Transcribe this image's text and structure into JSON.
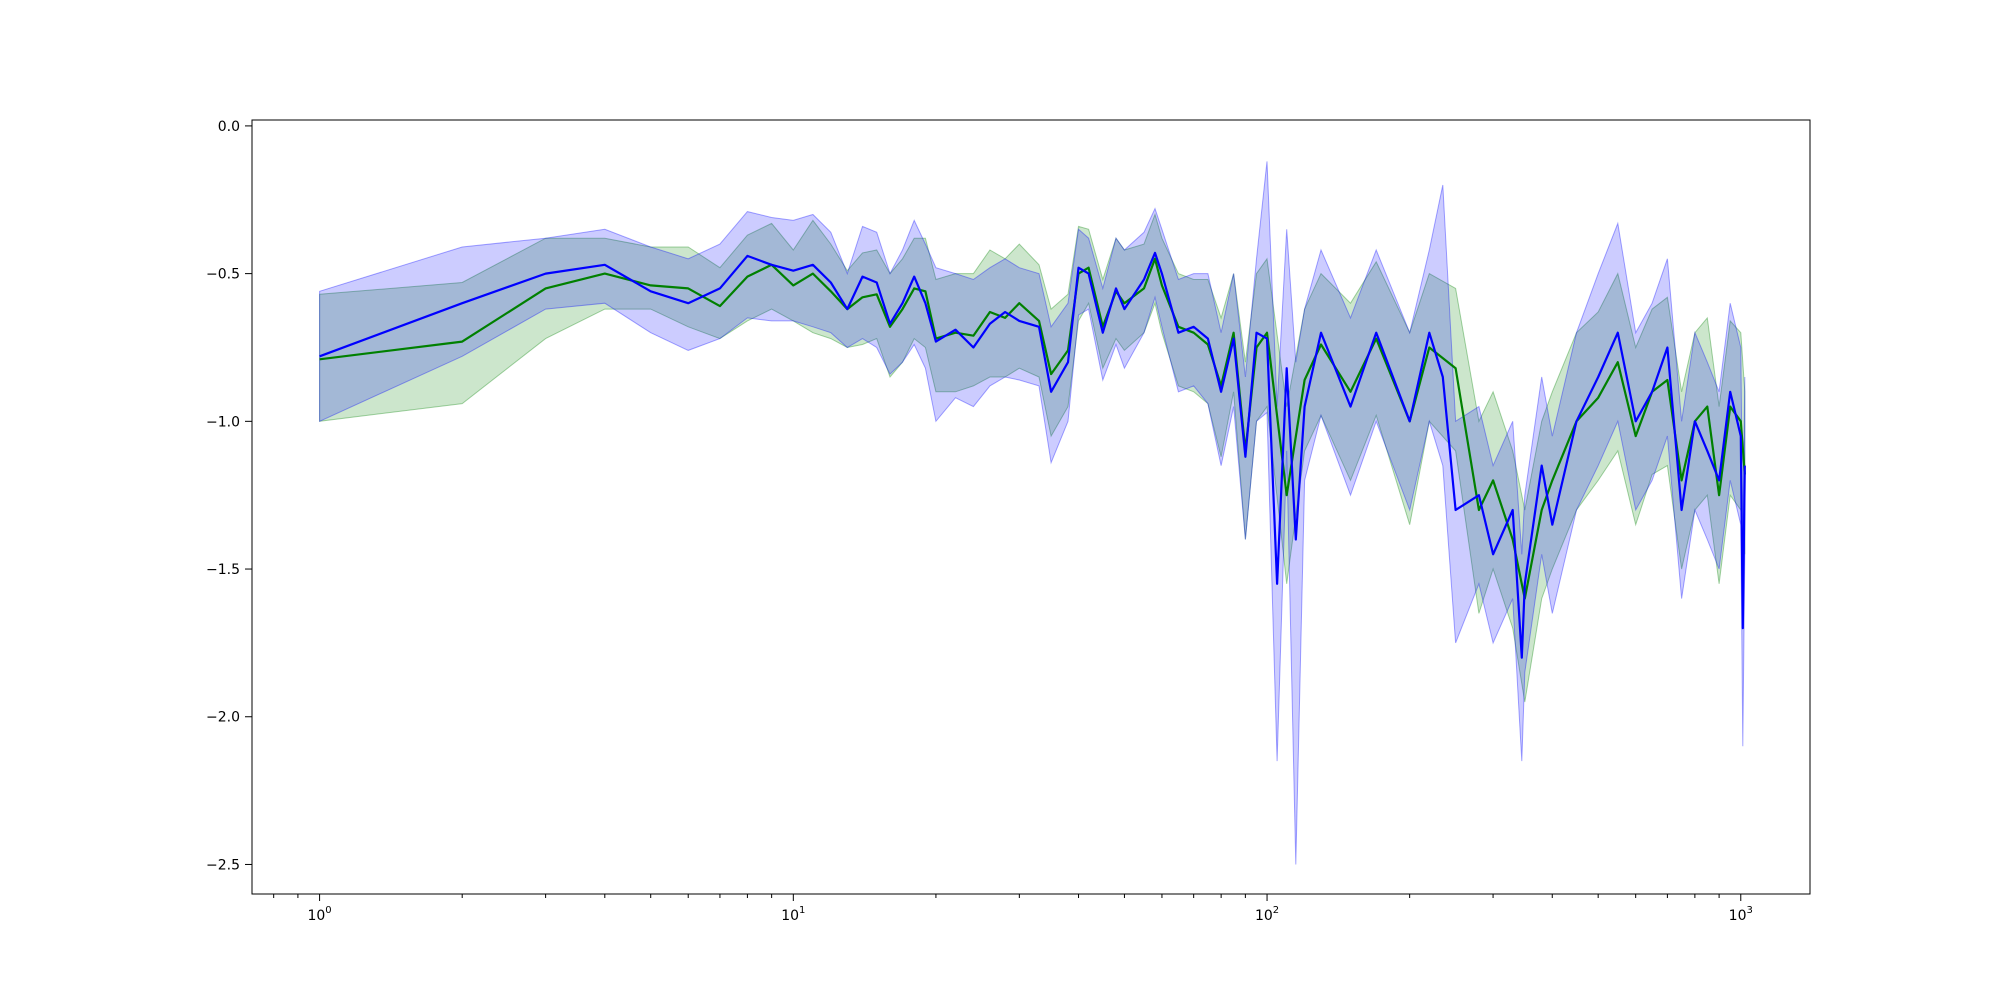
{
  "chart_data": {
    "type": "line",
    "title": "",
    "xlabel": "",
    "ylabel": "",
    "x_scale": "log",
    "xlim": [
      0.72,
      1400
    ],
    "ylim": [
      -2.6,
      0.02
    ],
    "grid": false,
    "x_ticks": [
      {
        "value": 1,
        "base": "10",
        "exp": "0"
      },
      {
        "value": 10,
        "base": "10",
        "exp": "1"
      },
      {
        "value": 100,
        "base": "10",
        "exp": "2"
      },
      {
        "value": 1000,
        "base": "10",
        "exp": "3"
      }
    ],
    "y_ticks": [
      {
        "value": 0.0,
        "label": "0.0"
      },
      {
        "value": -0.5,
        "label": "−0.5"
      },
      {
        "value": -1.0,
        "label": "−1.0"
      },
      {
        "value": -1.5,
        "label": "−1.5"
      },
      {
        "value": -2.0,
        "label": "−2.0"
      },
      {
        "value": -2.5,
        "label": "−2.5"
      }
    ],
    "series": [
      {
        "color": "#008000",
        "band_color": "#008000",
        "band_opacity": 0.2,
        "x": [
          1,
          2,
          3,
          4,
          5,
          6,
          7,
          8,
          9,
          10,
          11,
          12,
          13,
          14,
          15,
          16,
          17,
          18,
          19,
          20,
          22,
          24,
          26,
          28,
          30,
          33,
          35,
          38,
          40,
          42,
          45,
          48,
          50,
          55,
          58,
          60,
          65,
          70,
          75,
          80,
          85,
          90,
          95,
          100,
          110,
          120,
          130,
          150,
          170,
          200,
          220,
          250,
          280,
          300,
          330,
          350,
          380,
          400,
          450,
          500,
          550,
          600,
          650,
          700,
          750,
          800,
          850,
          900,
          950,
          1000,
          1020
        ],
        "values": [
          -0.79,
          -0.73,
          -0.55,
          -0.5,
          -0.54,
          -0.55,
          -0.61,
          -0.51,
          -0.47,
          -0.54,
          -0.5,
          -0.56,
          -0.62,
          -0.58,
          -0.57,
          -0.68,
          -0.62,
          -0.55,
          -0.56,
          -0.72,
          -0.7,
          -0.71,
          -0.63,
          -0.65,
          -0.6,
          -0.66,
          -0.84,
          -0.76,
          -0.5,
          -0.48,
          -0.68,
          -0.56,
          -0.6,
          -0.55,
          -0.45,
          -0.54,
          -0.68,
          -0.7,
          -0.74,
          -0.88,
          -0.7,
          -1.1,
          -0.75,
          -0.7,
          -1.25,
          -0.86,
          -0.74,
          -0.9,
          -0.72,
          -1.0,
          -0.75,
          -0.82,
          -1.3,
          -1.2,
          -1.4,
          -1.6,
          -1.3,
          -1.2,
          -1.0,
          -0.92,
          -0.8,
          -1.05,
          -0.9,
          -0.86,
          -1.2,
          -1.0,
          -0.95,
          -1.25,
          -0.95,
          -1.0,
          -1.18
        ],
        "lower": [
          -1.0,
          -0.94,
          -0.72,
          -0.62,
          -0.62,
          -0.68,
          -0.72,
          -0.66,
          -0.62,
          -0.66,
          -0.7,
          -0.72,
          -0.75,
          -0.74,
          -0.72,
          -0.85,
          -0.8,
          -0.72,
          -0.75,
          -0.9,
          -0.9,
          -0.88,
          -0.85,
          -0.85,
          -0.82,
          -0.85,
          -1.05,
          -0.95,
          -0.66,
          -0.6,
          -0.82,
          -0.72,
          -0.76,
          -0.7,
          -0.6,
          -0.7,
          -0.88,
          -0.9,
          -0.94,
          -1.12,
          -0.9,
          -1.4,
          -1.0,
          -0.95,
          -1.55,
          -1.1,
          -0.98,
          -1.2,
          -0.98,
          -1.35,
          -1.0,
          -1.1,
          -1.65,
          -1.5,
          -1.7,
          -1.95,
          -1.6,
          -1.5,
          -1.3,
          -1.2,
          -1.1,
          -1.35,
          -1.18,
          -1.15,
          -1.5,
          -1.3,
          -1.25,
          -1.55,
          -1.25,
          -1.3,
          -1.45
        ],
        "upper": [
          -0.57,
          -0.53,
          -0.38,
          -0.38,
          -0.41,
          -0.41,
          -0.48,
          -0.37,
          -0.33,
          -0.42,
          -0.32,
          -0.4,
          -0.49,
          -0.43,
          -0.42,
          -0.5,
          -0.45,
          -0.38,
          -0.38,
          -0.52,
          -0.5,
          -0.5,
          -0.42,
          -0.45,
          -0.4,
          -0.47,
          -0.62,
          -0.57,
          -0.34,
          -0.35,
          -0.52,
          -0.38,
          -0.42,
          -0.4,
          -0.3,
          -0.38,
          -0.5,
          -0.52,
          -0.52,
          -0.65,
          -0.5,
          -0.8,
          -0.5,
          -0.45,
          -0.95,
          -0.62,
          -0.5,
          -0.6,
          -0.46,
          -0.7,
          -0.5,
          -0.55,
          -1.0,
          -0.9,
          -1.1,
          -1.3,
          -1.0,
          -0.9,
          -0.7,
          -0.63,
          -0.5,
          -0.75,
          -0.62,
          -0.58,
          -0.9,
          -0.7,
          -0.65,
          -0.95,
          -0.66,
          -0.7,
          -0.9
        ]
      },
      {
        "color": "#0000ff",
        "band_color": "#0000ff",
        "band_opacity": 0.2,
        "x": [
          1,
          2,
          3,
          4,
          5,
          6,
          7,
          8,
          9,
          10,
          11,
          12,
          13,
          14,
          15,
          16,
          17,
          18,
          19,
          20,
          22,
          24,
          26,
          28,
          30,
          33,
          35,
          38,
          40,
          42,
          45,
          48,
          50,
          55,
          58,
          60,
          65,
          70,
          75,
          80,
          85,
          90,
          95,
          100,
          105,
          110,
          115,
          120,
          130,
          150,
          170,
          200,
          220,
          235,
          250,
          280,
          300,
          330,
          345,
          350,
          380,
          400,
          450,
          500,
          550,
          600,
          650,
          700,
          750,
          800,
          850,
          900,
          950,
          1000,
          1010,
          1020
        ],
        "values": [
          -0.78,
          -0.6,
          -0.5,
          -0.47,
          -0.56,
          -0.6,
          -0.55,
          -0.44,
          -0.47,
          -0.49,
          -0.47,
          -0.53,
          -0.62,
          -0.51,
          -0.53,
          -0.67,
          -0.6,
          -0.51,
          -0.6,
          -0.73,
          -0.69,
          -0.75,
          -0.67,
          -0.63,
          -0.66,
          -0.68,
          -0.9,
          -0.8,
          -0.48,
          -0.5,
          -0.7,
          -0.55,
          -0.62,
          -0.52,
          -0.43,
          -0.5,
          -0.7,
          -0.68,
          -0.72,
          -0.9,
          -0.72,
          -1.12,
          -0.7,
          -0.72,
          -1.55,
          -0.82,
          -1.4,
          -0.95,
          -0.7,
          -0.95,
          -0.7,
          -1.0,
          -0.7,
          -0.85,
          -1.3,
          -1.25,
          -1.45,
          -1.3,
          -1.8,
          -1.55,
          -1.15,
          -1.35,
          -1.0,
          -0.85,
          -0.7,
          -1.0,
          -0.9,
          -0.75,
          -1.3,
          -1.0,
          -1.1,
          -1.2,
          -0.9,
          -1.05,
          -1.7,
          -1.15
        ],
        "lower": [
          -1.0,
          -0.78,
          -0.62,
          -0.6,
          -0.7,
          -0.76,
          -0.72,
          -0.65,
          -0.66,
          -0.66,
          -0.68,
          -0.7,
          -0.75,
          -0.72,
          -0.75,
          -0.84,
          -0.8,
          -0.74,
          -0.82,
          -1.0,
          -0.92,
          -0.95,
          -0.88,
          -0.85,
          -0.86,
          -0.88,
          -1.14,
          -1.0,
          -0.64,
          -0.62,
          -0.86,
          -0.74,
          -0.82,
          -0.7,
          -0.58,
          -0.68,
          -0.9,
          -0.88,
          -0.94,
          -1.15,
          -0.95,
          -1.4,
          -1.0,
          -0.97,
          -2.15,
          -1.1,
          -2.5,
          -1.2,
          -0.98,
          -1.25,
          -1.0,
          -1.3,
          -1.0,
          -1.15,
          -1.75,
          -1.55,
          -1.75,
          -1.6,
          -2.15,
          -1.85,
          -1.45,
          -1.65,
          -1.3,
          -1.15,
          -1.0,
          -1.3,
          -1.2,
          -1.05,
          -1.6,
          -1.3,
          -1.4,
          -1.5,
          -1.2,
          -1.35,
          -2.1,
          -1.45
        ],
        "upper": [
          -0.56,
          -0.41,
          -0.38,
          -0.35,
          -0.41,
          -0.45,
          -0.4,
          -0.29,
          -0.31,
          -0.32,
          -0.3,
          -0.36,
          -0.5,
          -0.34,
          -0.36,
          -0.5,
          -0.42,
          -0.32,
          -0.4,
          -0.48,
          -0.5,
          -0.52,
          -0.48,
          -0.45,
          -0.48,
          -0.5,
          -0.68,
          -0.6,
          -0.35,
          -0.38,
          -0.55,
          -0.38,
          -0.42,
          -0.36,
          -0.28,
          -0.35,
          -0.52,
          -0.5,
          -0.5,
          -0.7,
          -0.5,
          -0.85,
          -0.45,
          -0.12,
          -0.95,
          -0.35,
          -0.8,
          -0.62,
          -0.42,
          -0.65,
          -0.42,
          -0.7,
          -0.42,
          -0.2,
          -1.0,
          -0.95,
          -1.15,
          -1.0,
          -1.45,
          -1.25,
          -0.85,
          -1.05,
          -0.7,
          -0.5,
          -0.33,
          -0.7,
          -0.6,
          -0.45,
          -1.0,
          -0.7,
          -0.8,
          -0.9,
          -0.6,
          -0.75,
          -1.4,
          -0.85
        ]
      }
    ]
  }
}
